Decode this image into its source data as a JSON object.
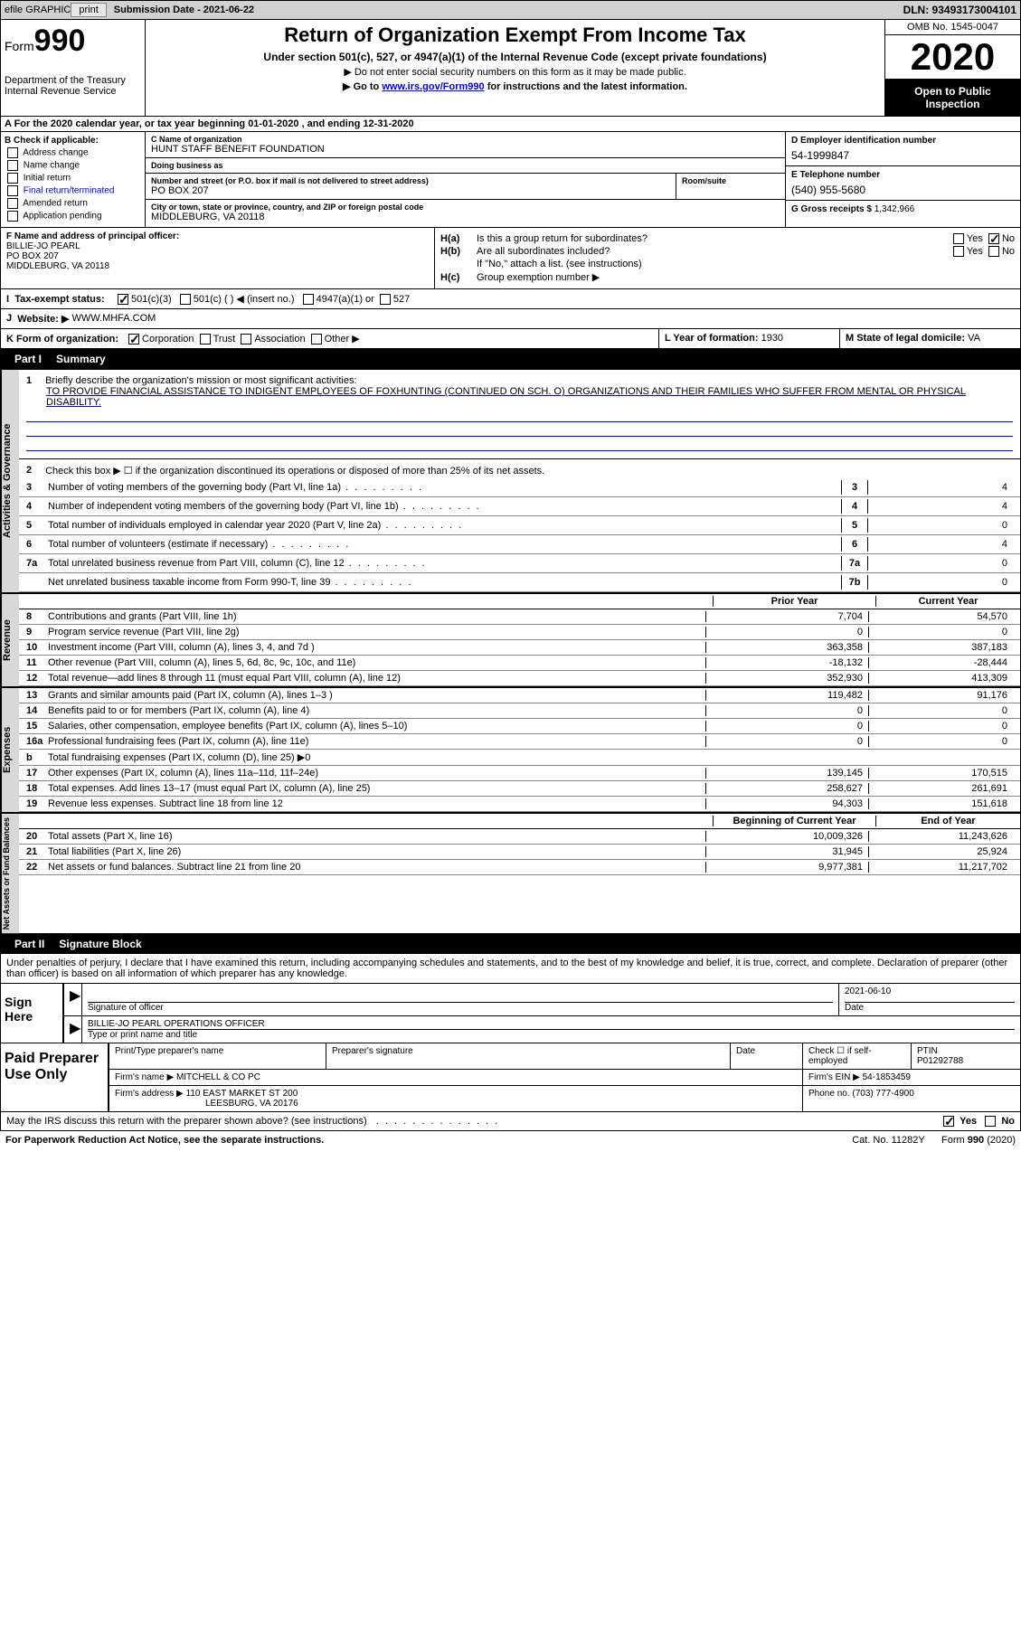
{
  "topbar": {
    "efile_label": "efile GRAPHIC",
    "print_btn": "print",
    "sub_date_label": "Submission Date - 2021-06-22",
    "dln": "DLN: 93493173004101"
  },
  "header": {
    "form_word": "Form",
    "form_num": "990",
    "dept": "Department of the Treasury\nInternal Revenue Service",
    "title": "Return of Organization Exempt From Income Tax",
    "subtitle": "Under section 501(c), 527, or 4947(a)(1) of the Internal Revenue Code (except private foundations)",
    "note1": "▶ Do not enter social security numbers on this form as it may be made public.",
    "note2_prefix": "▶ Go to ",
    "note2_link": "www.irs.gov/Form990",
    "note2_suffix": " for instructions and the latest information.",
    "omb": "OMB No. 1545-0047",
    "year": "2020",
    "open_pub": "Open to Public Inspection"
  },
  "period": "A For the 2020 calendar year, or tax year beginning 01-01-2020   , and ending 12-31-2020",
  "sectionB": {
    "label": "B Check if applicable:",
    "options": [
      "Address change",
      "Name change",
      "Initial return",
      "Final return/terminated",
      "Amended return",
      "Application pending"
    ],
    "c_label": "C Name of organization",
    "org_name": "HUNT STAFF BENEFIT FOUNDATION",
    "dba_label": "Doing business as",
    "dba": "",
    "addr_label": "Number and street (or P.O. box if mail is not delivered to street address)",
    "suite_label": "Room/suite",
    "addr": "PO BOX 207",
    "city_label": "City or town, state or province, country, and ZIP or foreign postal code",
    "city": "MIDDLEBURG, VA  20118",
    "d_label": "D Employer identification number",
    "ein": "54-1999847",
    "e_label": "E Telephone number",
    "phone": "(540) 955-5680",
    "g_label": "G Gross receipts $",
    "gross": "1,342,966"
  },
  "sectionF": {
    "label": "F Name and address of principal officer:",
    "name": "BILLIE-JO PEARL",
    "addr1": "PO BOX 207",
    "addr2": "MIDDLEBURG, VA  20118"
  },
  "sectionH": {
    "ha_label": "H(a)",
    "ha_text": "Is this a group return for subordinates?",
    "hb_label": "H(b)",
    "hb_text": "Are all subordinates included?",
    "hb_note": "If \"No,\" attach a list. (see instructions)",
    "hc_label": "H(c)",
    "hc_text": "Group exemption number ▶",
    "yes": "Yes",
    "no": "No"
  },
  "statusI": {
    "label": "I",
    "text": "Tax-exempt status:",
    "opt1": "501(c)(3)",
    "opt2": "501(c) (  ) ◀ (insert no.)",
    "opt3": "4947(a)(1) or",
    "opt4": "527"
  },
  "websiteJ": {
    "label": "J",
    "text": "Website: ▶",
    "url": "WWW.MHFA.COM"
  },
  "rowK": {
    "label": "K Form of organization:",
    "corp": "Corporation",
    "trust": "Trust",
    "assoc": "Association",
    "other": "Other ▶",
    "l_label": "L Year of formation:",
    "l_val": "1930",
    "m_label": "M State of legal domicile:",
    "m_val": "VA"
  },
  "part1": {
    "num": "Part I",
    "title": "Summary"
  },
  "governance": {
    "side": "Activities & Governance",
    "l1_num": "1",
    "l1_text": "Briefly describe the organization's mission or most significant activities:",
    "mission": "TO PROVIDE FINANCIAL ASSISTANCE TO INDIGENT EMPLOYEES OF FOXHUNTING (CONTINUED ON SCH. O) ORGANIZATIONS AND THEIR FAMILIES WHO SUFFER FROM MENTAL OR PHYSICAL DISABILITY.",
    "l2_num": "2",
    "l2_text": "Check this box ▶ ☐  if the organization discontinued its operations or disposed of more than 25% of its net assets.",
    "lines": [
      {
        "n": "3",
        "t": "Number of voting members of the governing body (Part VI, line 1a)",
        "box": "3",
        "v": "4"
      },
      {
        "n": "4",
        "t": "Number of independent voting members of the governing body (Part VI, line 1b)",
        "box": "4",
        "v": "4"
      },
      {
        "n": "5",
        "t": "Total number of individuals employed in calendar year 2020 (Part V, line 2a)",
        "box": "5",
        "v": "0"
      },
      {
        "n": "6",
        "t": "Total number of volunteers (estimate if necessary)",
        "box": "6",
        "v": "4"
      },
      {
        "n": "7a",
        "t": "Total unrelated business revenue from Part VIII, column (C), line 12",
        "box": "7a",
        "v": "0"
      },
      {
        "n": "",
        "t": "Net unrelated business taxable income from Form 990-T, line 39",
        "box": "7b",
        "v": "0"
      }
    ]
  },
  "two_col_hdr": {
    "prior": "Prior Year",
    "current": "Current Year"
  },
  "revenue": {
    "side": "Revenue",
    "lines": [
      {
        "n": "8",
        "t": "Contributions and grants (Part VIII, line 1h)",
        "c1": "7,704",
        "c2": "54,570"
      },
      {
        "n": "9",
        "t": "Program service revenue (Part VIII, line 2g)",
        "c1": "0",
        "c2": "0"
      },
      {
        "n": "10",
        "t": "Investment income (Part VIII, column (A), lines 3, 4, and 7d )",
        "c1": "363,358",
        "c2": "387,183"
      },
      {
        "n": "11",
        "t": "Other revenue (Part VIII, column (A), lines 5, 6d, 8c, 9c, 10c, and 11e)",
        "c1": "-18,132",
        "c2": "-28,444"
      },
      {
        "n": "12",
        "t": "Total revenue—add lines 8 through 11 (must equal Part VIII, column (A), line 12)",
        "c1": "352,930",
        "c2": "413,309"
      }
    ]
  },
  "expenses": {
    "side": "Expenses",
    "lines": [
      {
        "n": "13",
        "t": "Grants and similar amounts paid (Part IX, column (A), lines 1–3 )",
        "c1": "119,482",
        "c2": "91,176"
      },
      {
        "n": "14",
        "t": "Benefits paid to or for members (Part IX, column (A), line 4)",
        "c1": "0",
        "c2": "0"
      },
      {
        "n": "15",
        "t": "Salaries, other compensation, employee benefits (Part IX, column (A), lines 5–10)",
        "c1": "0",
        "c2": "0"
      },
      {
        "n": "16a",
        "t": "Professional fundraising fees (Part IX, column (A), line 11e)",
        "c1": "0",
        "c2": "0"
      },
      {
        "n": "b",
        "t": "Total fundraising expenses (Part IX, column (D), line 25) ▶0",
        "c1": "",
        "c2": "",
        "shaded": true
      },
      {
        "n": "17",
        "t": "Other expenses (Part IX, column (A), lines 11a–11d, 11f–24e)",
        "c1": "139,145",
        "c2": "170,515"
      },
      {
        "n": "18",
        "t": "Total expenses. Add lines 13–17 (must equal Part IX, column (A), line 25)",
        "c1": "258,627",
        "c2": "261,691"
      },
      {
        "n": "19",
        "t": "Revenue less expenses. Subtract line 18 from line 12",
        "c1": "94,303",
        "c2": "151,618"
      }
    ]
  },
  "netassets": {
    "side": "Net Assets or Fund Balances",
    "hdr1": "Beginning of Current Year",
    "hdr2": "End of Year",
    "lines": [
      {
        "n": "20",
        "t": "Total assets (Part X, line 16)",
        "c1": "10,009,326",
        "c2": "11,243,626"
      },
      {
        "n": "21",
        "t": "Total liabilities (Part X, line 26)",
        "c1": "31,945",
        "c2": "25,924"
      },
      {
        "n": "22",
        "t": "Net assets or fund balances. Subtract line 21 from line 20",
        "c1": "9,977,381",
        "c2": "11,217,702"
      }
    ]
  },
  "part2": {
    "num": "Part II",
    "title": "Signature Block"
  },
  "sig_intro": "Under penalties of perjury, I declare that I have examined this return, including accompanying schedules and statements, and to the best of my knowledge and belief, it is true, correct, and complete. Declaration of preparer (other than officer) is based on all information of which preparer has any knowledge.",
  "sign": {
    "here": "Sign Here",
    "sig_officer_lbl": "Signature of officer",
    "date_lbl": "Date",
    "date_val": "2021-06-10",
    "name_val": "BILLIE-JO PEARL  OPERATIONS OFFICER",
    "name_lbl": "Type or print name and title"
  },
  "prep": {
    "label": "Paid Preparer Use Only",
    "h1": "Print/Type preparer's name",
    "h2": "Preparer's signature",
    "h3": "Date",
    "h4": "Check ☐ if self-employed",
    "h5": "PTIN",
    "ptin": "P01292788",
    "firm_lbl": "Firm's name    ▶",
    "firm": "MITCHELL & CO PC",
    "ein_lbl": "Firm's EIN ▶",
    "ein": "54-1853459",
    "addr_lbl": "Firm's address ▶",
    "addr": "110 EAST MARKET ST 200",
    "addr2": "LEESBURG, VA  20176",
    "phone_lbl": "Phone no.",
    "phone": "(703) 777-4900"
  },
  "discuss": {
    "text": "May the IRS discuss this return with the preparer shown above? (see instructions)",
    "yes": "Yes",
    "no": "No"
  },
  "footer": {
    "left": "For Paperwork Reduction Act Notice, see the separate instructions.",
    "mid": "Cat. No. 11282Y",
    "right": "Form 990 (2020)"
  }
}
